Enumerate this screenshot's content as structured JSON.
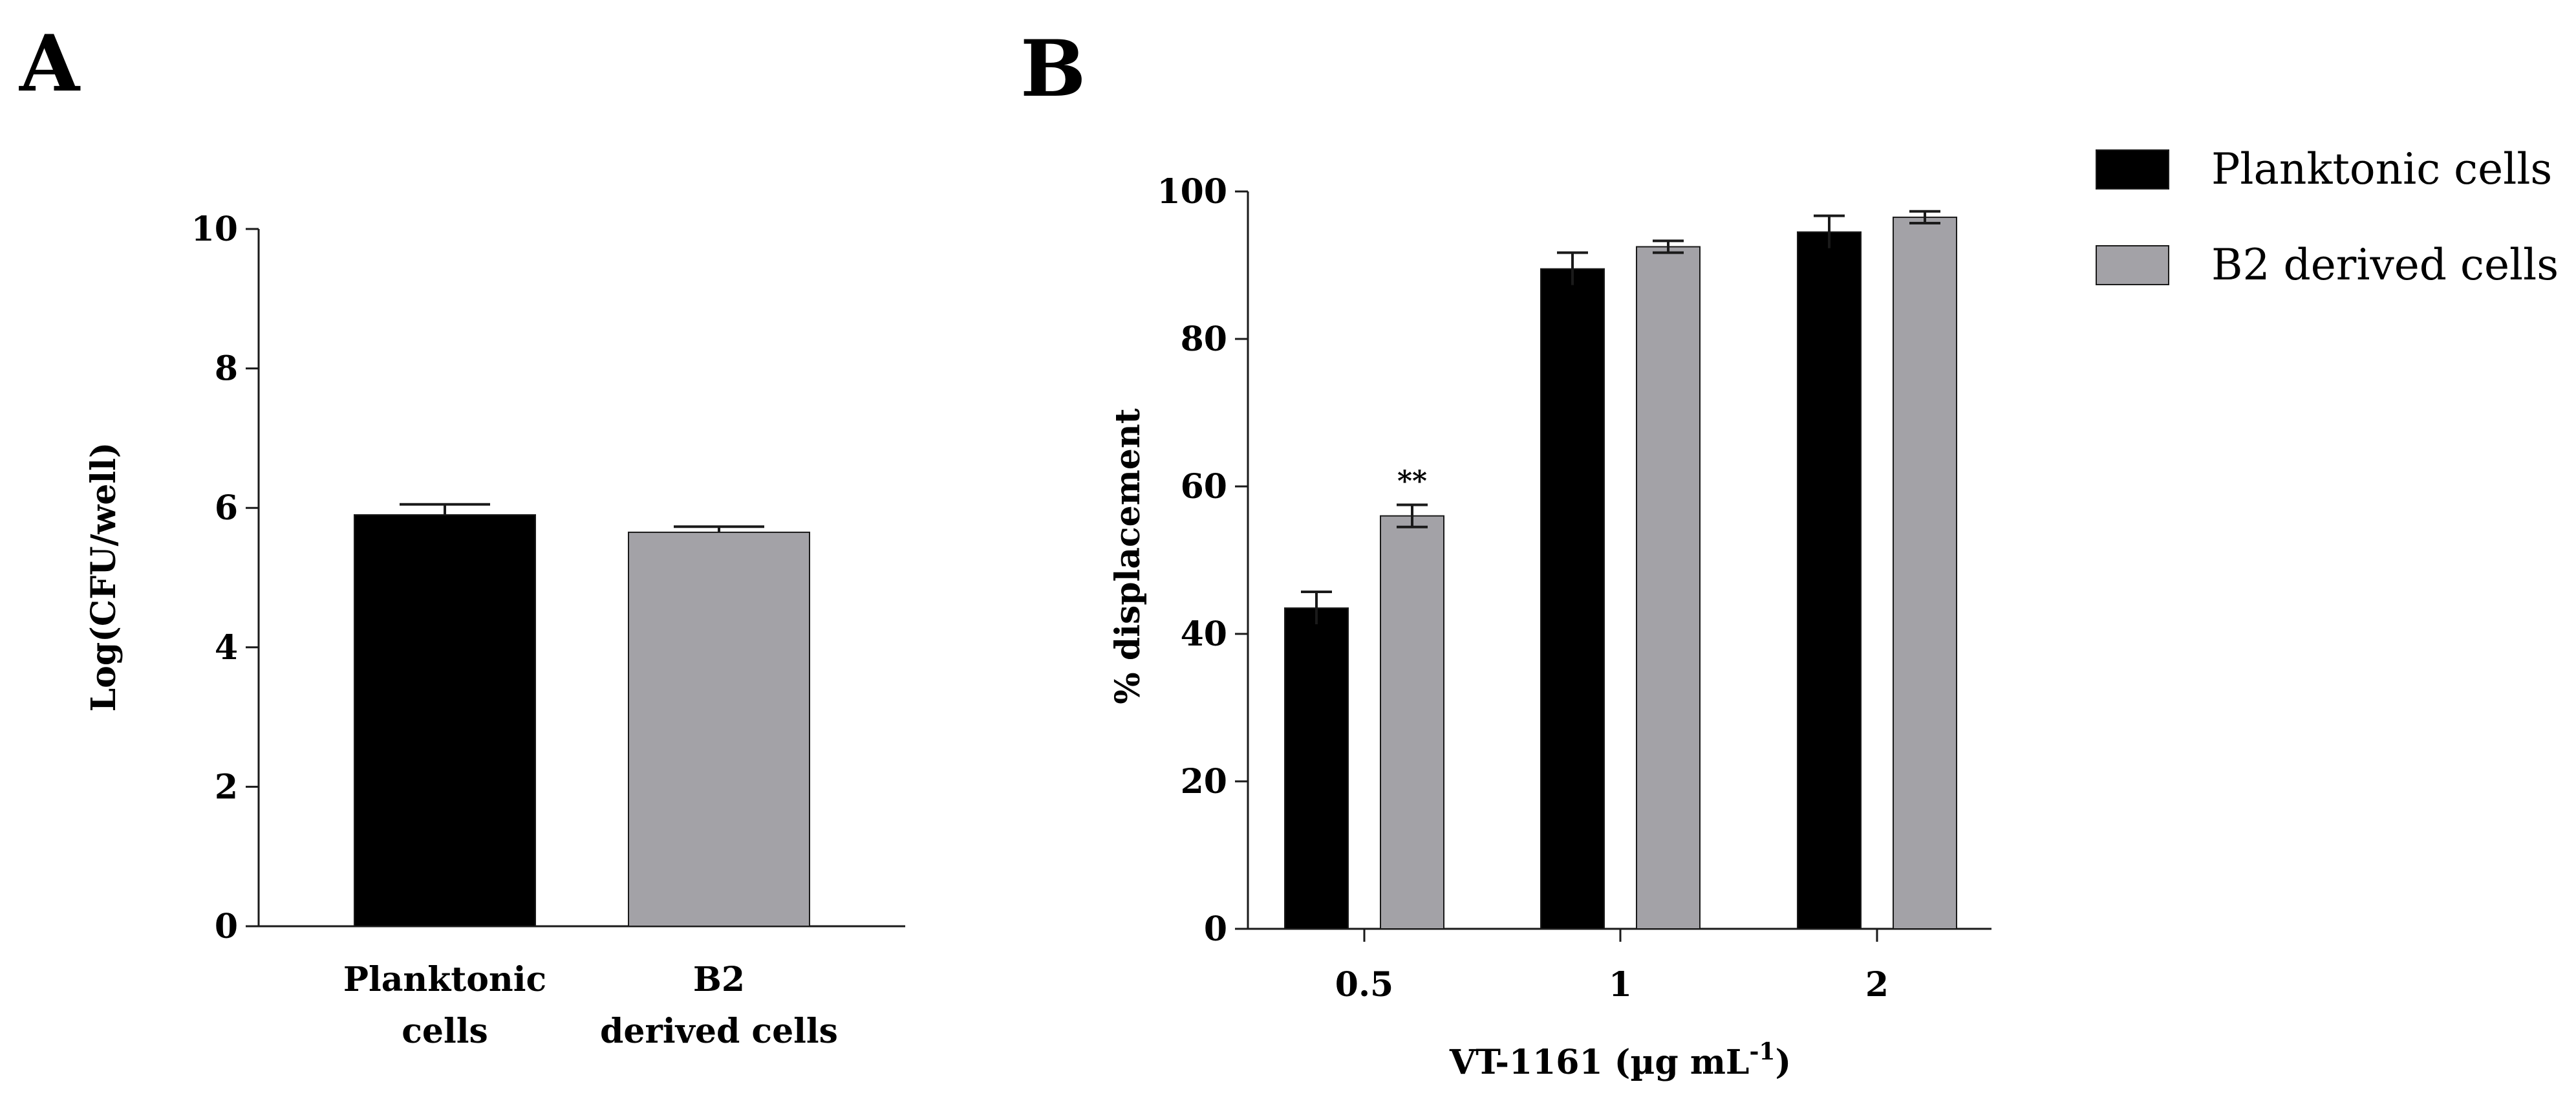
{
  "colors": {
    "planktonic": "#000000",
    "b2": "#a3a2a7",
    "axis": "#1a1a1a"
  },
  "legend": [
    {
      "label": "Planktonic cells",
      "color": "#000000"
    },
    {
      "label": "B2 derived cells",
      "color": "#a3a2a7"
    }
  ],
  "chart_data": [
    {
      "panel": "A",
      "type": "bar",
      "title": "",
      "xlabel": "",
      "ylabel": "Log(CFU/well)",
      "ylim": [
        0,
        10
      ],
      "yticks": [
        "0",
        "2",
        "4",
        "6",
        "8",
        "10"
      ],
      "categories": [
        [
          "Planktonic",
          "cells"
        ],
        [
          "B2",
          "derived cells"
        ]
      ],
      "values": [
        5.9,
        5.65
      ],
      "errors": [
        0.15,
        0.08
      ],
      "colors": [
        "#000000",
        "#a3a2a7"
      ]
    },
    {
      "panel": "B",
      "type": "bar",
      "title": "",
      "xlabel": "VT-1161 (µg mL",
      "xlabel_sup": "-1",
      "xlabel_end": ")",
      "ylabel": "% displacement",
      "ylim": [
        0,
        100
      ],
      "yticks": [
        "0",
        "20",
        "40",
        "60",
        "80",
        "100"
      ],
      "categories": [
        "0.5",
        "1",
        "2"
      ],
      "series": [
        {
          "name": "Planktonic cells",
          "values": [
            43.5,
            89.5,
            94.5
          ],
          "errors": [
            2.2,
            2.2,
            2.2
          ],
          "color": "#000000"
        },
        {
          "name": "B2 derived cells",
          "values": [
            56,
            92.5,
            96.5
          ],
          "errors": [
            1.5,
            0.8,
            0.8
          ],
          "color": "#a3a2a7"
        }
      ],
      "annotations": [
        {
          "category": "0.5",
          "series": "B2 derived cells",
          "text": "**"
        }
      ]
    }
  ]
}
